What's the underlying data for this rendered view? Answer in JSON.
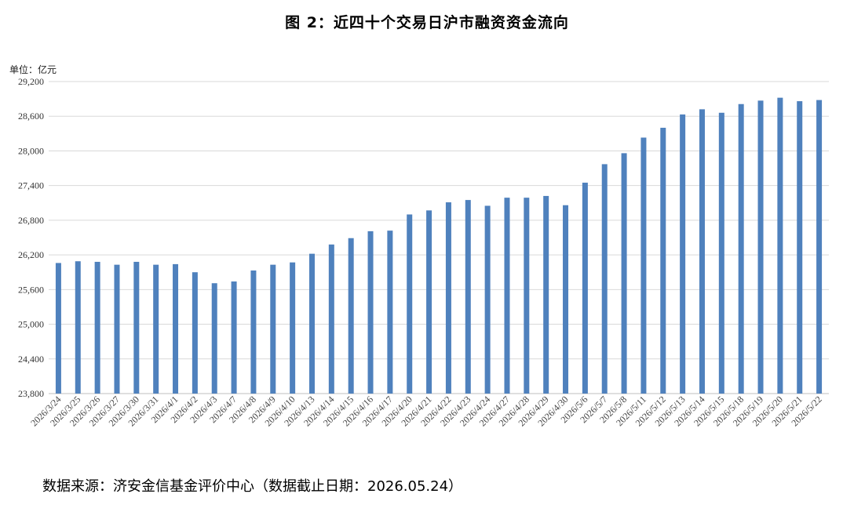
{
  "header": {
    "title": "图 2：近四十个交易日沪市融资资金流向",
    "unit": "单位：亿元"
  },
  "footer": {
    "source": "数据来源：济安金信基金评价中心（数据截止日期：2026.05.24）"
  },
  "colors": {
    "bar": "#4F81BD",
    "grid": "#D9D9D9",
    "axis": "#BFBFBF"
  },
  "chart_data": {
    "type": "bar",
    "ylim": [
      23800,
      29200
    ],
    "yticks": [
      23800,
      24400,
      25000,
      25600,
      26200,
      26800,
      27400,
      28000,
      28600,
      29200
    ],
    "ytick_labels": [
      "23,800",
      "24,400",
      "25,000",
      "25,600",
      "26,200",
      "26,800",
      "27,400",
      "28,000",
      "28,600",
      "29,200"
    ],
    "grid": true,
    "legend": "none",
    "categories": [
      "2026/3/24",
      "2026/3/25",
      "2026/3/26",
      "2026/3/27",
      "2026/3/30",
      "2026/3/31",
      "2026/4/1",
      "2026/4/2",
      "2026/4/3",
      "2026/4/7",
      "2026/4/8",
      "2026/4/9",
      "2026/4/10",
      "2026/4/13",
      "2026/4/14",
      "2026/4/15",
      "2026/4/16",
      "2026/4/17",
      "2026/4/20",
      "2026/4/21",
      "2026/4/22",
      "2026/4/23",
      "2026/4/24",
      "2026/4/27",
      "2026/4/28",
      "2026/4/29",
      "2026/4/30",
      "2026/5/6",
      "2026/5/7",
      "2026/5/8",
      "2026/5/11",
      "2026/5/12",
      "2026/5/13",
      "2026/5/14",
      "2026/5/15",
      "2026/5/18",
      "2026/5/19",
      "2026/5/20",
      "2026/5/21",
      "2026/5/22"
    ],
    "values": [
      26060,
      26090,
      26080,
      26030,
      26080,
      26030,
      26040,
      25900,
      25710,
      25740,
      25930,
      26030,
      26070,
      26220,
      26380,
      26490,
      26610,
      26620,
      26900,
      26970,
      27110,
      27150,
      27050,
      27190,
      27190,
      27220,
      27060,
      27450,
      27770,
      27960,
      28230,
      28400,
      28630,
      28720,
      28660,
      28810,
      28870,
      28920,
      28860,
      28880
    ]
  }
}
